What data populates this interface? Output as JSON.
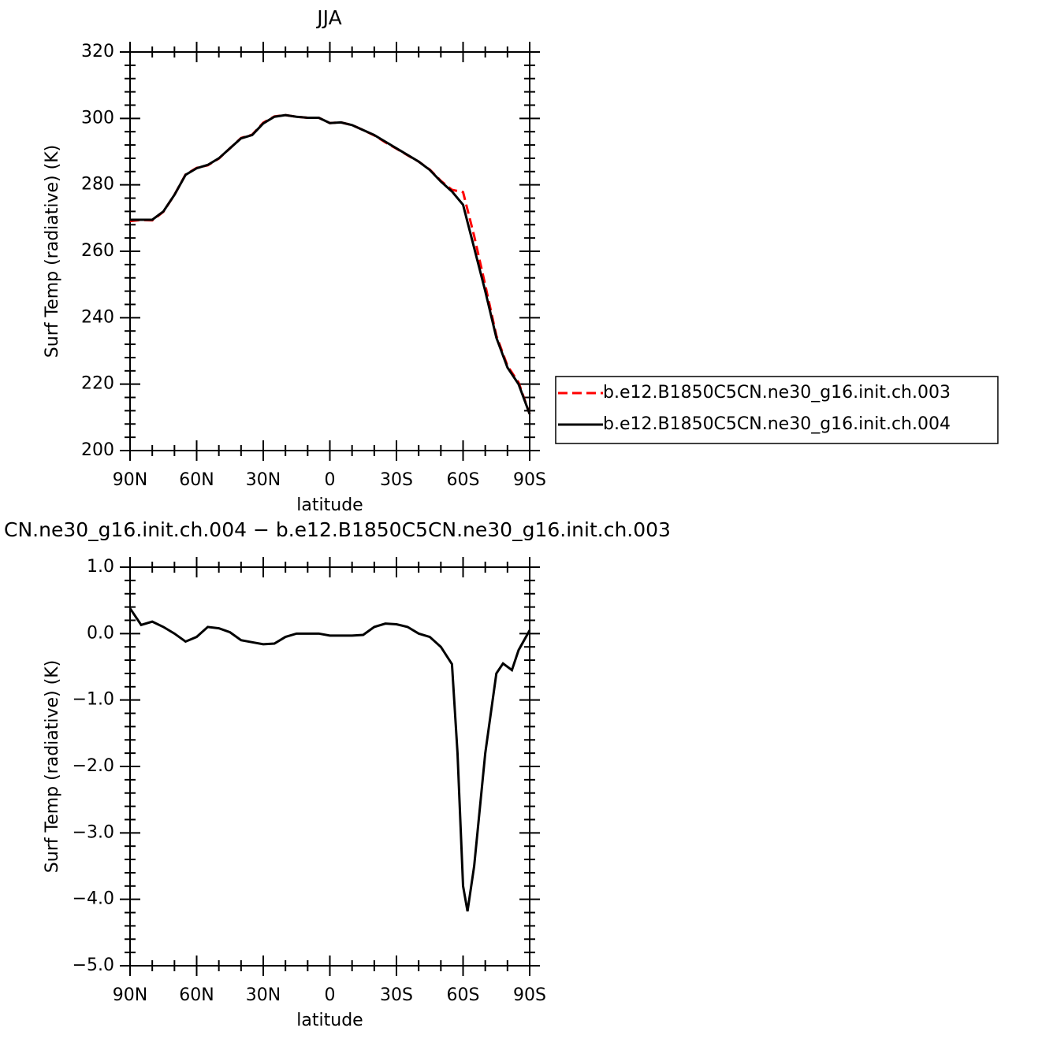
{
  "chart_data": [
    {
      "type": "line",
      "title": "JJA",
      "x_label": "latitude",
      "y_label": "Surf Temp (radiative) (K)",
      "x": [
        90,
        85,
        80,
        75,
        70,
        65,
        60,
        55,
        50,
        45,
        40,
        35,
        30,
        25,
        20,
        15,
        10,
        5,
        0,
        -5,
        -10,
        -15,
        -20,
        -25,
        -30,
        -35,
        -40,
        -45,
        -50,
        -55,
        -60,
        -65,
        -70,
        -75,
        -80,
        -85,
        -90
      ],
      "series": [
        {
          "name": "b.e12.B1850C5CN.ne30_g16.init.ch.003",
          "color": "#ff0000",
          "dash": true,
          "values": [
            269.1,
            269.4,
            269.3,
            271.9,
            277,
            283.1,
            285.1,
            285.9,
            287.9,
            291,
            294.1,
            295.1,
            298.7,
            300.6,
            301,
            300.5,
            300.2,
            300.2,
            298.6,
            298.8,
            298,
            296.5,
            294.9,
            292.8,
            290.9,
            288.9,
            287,
            284.6,
            281.2,
            278.5,
            277.8,
            264.6,
            249.8,
            234.6,
            225.5,
            220.5,
            211
          ]
        },
        {
          "name": "b.e12.B1850C5CN.ne30_g16.init.ch.004",
          "color": "#000000",
          "dash": false,
          "values": [
            269.5,
            269.5,
            269.5,
            272,
            277,
            283,
            285,
            286,
            288,
            291,
            294,
            295,
            298.5,
            300.5,
            301,
            300.5,
            300.2,
            300.2,
            298.6,
            298.8,
            298,
            296.5,
            295,
            293,
            291,
            289,
            287,
            284.5,
            281,
            278,
            274,
            261,
            248,
            234,
            225,
            220,
            211
          ]
        }
      ],
      "xlim": [
        90,
        -90
      ],
      "xticks": [
        {
          "value": 90,
          "label": "90N"
        },
        {
          "value": 60,
          "label": "60N"
        },
        {
          "value": 30,
          "label": "30N"
        },
        0,
        {
          "value": -30,
          "label": "30S"
        },
        {
          "value": -60,
          "label": "60S"
        },
        {
          "value": -90,
          "label": "90S"
        }
      ],
      "ylim": [
        200,
        320
      ],
      "yticks": [
        200,
        220,
        240,
        260,
        280,
        300,
        320
      ],
      "legend": "right"
    },
    {
      "type": "line",
      "title": "CN.ne30_g16.init.ch.004 − b.e12.B1850C5CN.ne30_g16.init.ch.003",
      "x_label": "latitude",
      "y_label": "Surf Temp (radiative) (K)",
      "x": [
        90,
        85,
        80,
        75,
        70,
        65,
        60,
        55,
        50,
        45,
        40,
        35,
        30,
        25,
        20,
        15,
        10,
        5,
        0,
        -5,
        -10,
        -15,
        -20,
        -25,
        -30,
        -35,
        -40,
        -45,
        -50,
        -55,
        -57.5,
        -60,
        -62,
        -65,
        -70,
        -75,
        -78,
        -82,
        -85,
        -90
      ],
      "series": [
        {
          "name": "b.e12.B1850C5CN.ne30_g16.init.ch.004",
          "color": "#000000",
          "values": [
            0.38,
            0.13,
            0.18,
            0.1,
            0,
            -0.12,
            -0.05,
            0.1,
            0.08,
            0.02,
            -0.1,
            -0.13,
            -0.16,
            -0.15,
            -0.05,
            0,
            0,
            0,
            -0.03,
            -0.03,
            -0.03,
            -0.02,
            0.1,
            0.15,
            0.14,
            0.1,
            0,
            -0.05,
            -0.2,
            -0.46,
            -1.8,
            -3.8,
            -4.18,
            -3.5,
            -1.8,
            -0.6,
            -0.45,
            -0.55,
            -0.25,
            0.05
          ]
        }
      ],
      "xlim": [
        90,
        -90
      ],
      "xticks": [
        {
          "value": 90,
          "label": "90N"
        },
        {
          "value": 60,
          "label": "60N"
        },
        {
          "value": 30,
          "label": "30N"
        },
        0,
        {
          "value": -30,
          "label": "30S"
        },
        {
          "value": -60,
          "label": "60S"
        },
        {
          "value": -90,
          "label": "90S"
        }
      ],
      "ylim": [
        -5,
        1
      ],
      "yticks": [
        {
          "value": -5,
          "label": "−5.0"
        },
        {
          "value": -4,
          "label": "−4.0"
        },
        {
          "value": -3,
          "label": "−3.0"
        },
        {
          "value": -2,
          "label": "−2.0"
        },
        {
          "value": -1,
          "label": "−1.0"
        },
        {
          "value": 0,
          "label": "0.0"
        },
        {
          "value": 1,
          "label": "1.0"
        }
      ]
    }
  ]
}
